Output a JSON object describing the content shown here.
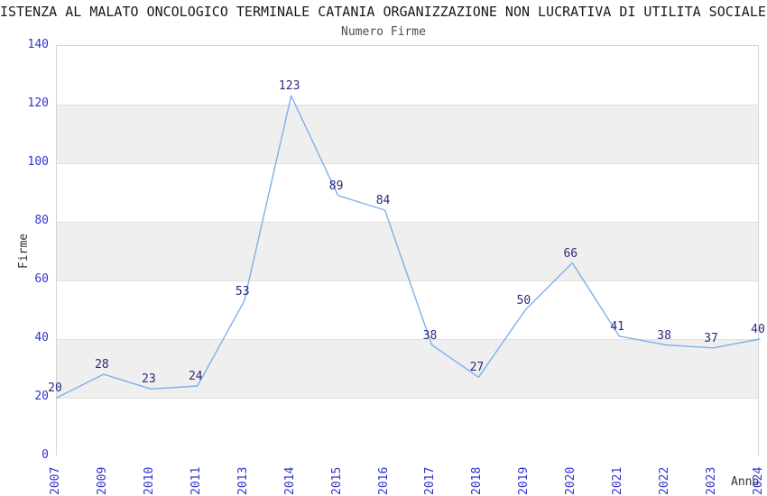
{
  "header": {
    "title": "ISTENZA AL MALATO ONCOLOGICO TERMINALE CATANIA ORGANIZZAZIONE NON LUCRATIVA DI UTILITA SOCIALE",
    "subtitle": "Numero Firme"
  },
  "chart_data": {
    "type": "line",
    "title": "Numero Firme",
    "categories": [
      "2007",
      "2009",
      "2010",
      "2011",
      "2013",
      "2014",
      "2015",
      "2016",
      "2017",
      "2018",
      "2019",
      "2020",
      "2021",
      "2022",
      "2023",
      "2024"
    ],
    "values": [
      20,
      28,
      23,
      24,
      53,
      123,
      89,
      84,
      38,
      27,
      50,
      66,
      41,
      38,
      37,
      40
    ],
    "xlabel": "Anno",
    "ylabel": "Firme",
    "ylim": [
      0,
      140
    ],
    "yticks": [
      0,
      20,
      40,
      60,
      80,
      100,
      120,
      140
    ],
    "grid": true,
    "legend": false,
    "band_pattern": "alternating horizontal bands, white and gray, one per 20 units, top band white",
    "colors": {
      "line": "#7db1ea",
      "data_label": "#2a2a7e",
      "tick_label": "#3333cc",
      "band_gray": "#efefef",
      "band_white": "#ffffff",
      "gridline": "#e0e0e0",
      "plot_border": "#d4d4d4",
      "title": "#1a1a1a",
      "subtitle": "#4d4d4d",
      "axis_name": "#333333"
    }
  }
}
